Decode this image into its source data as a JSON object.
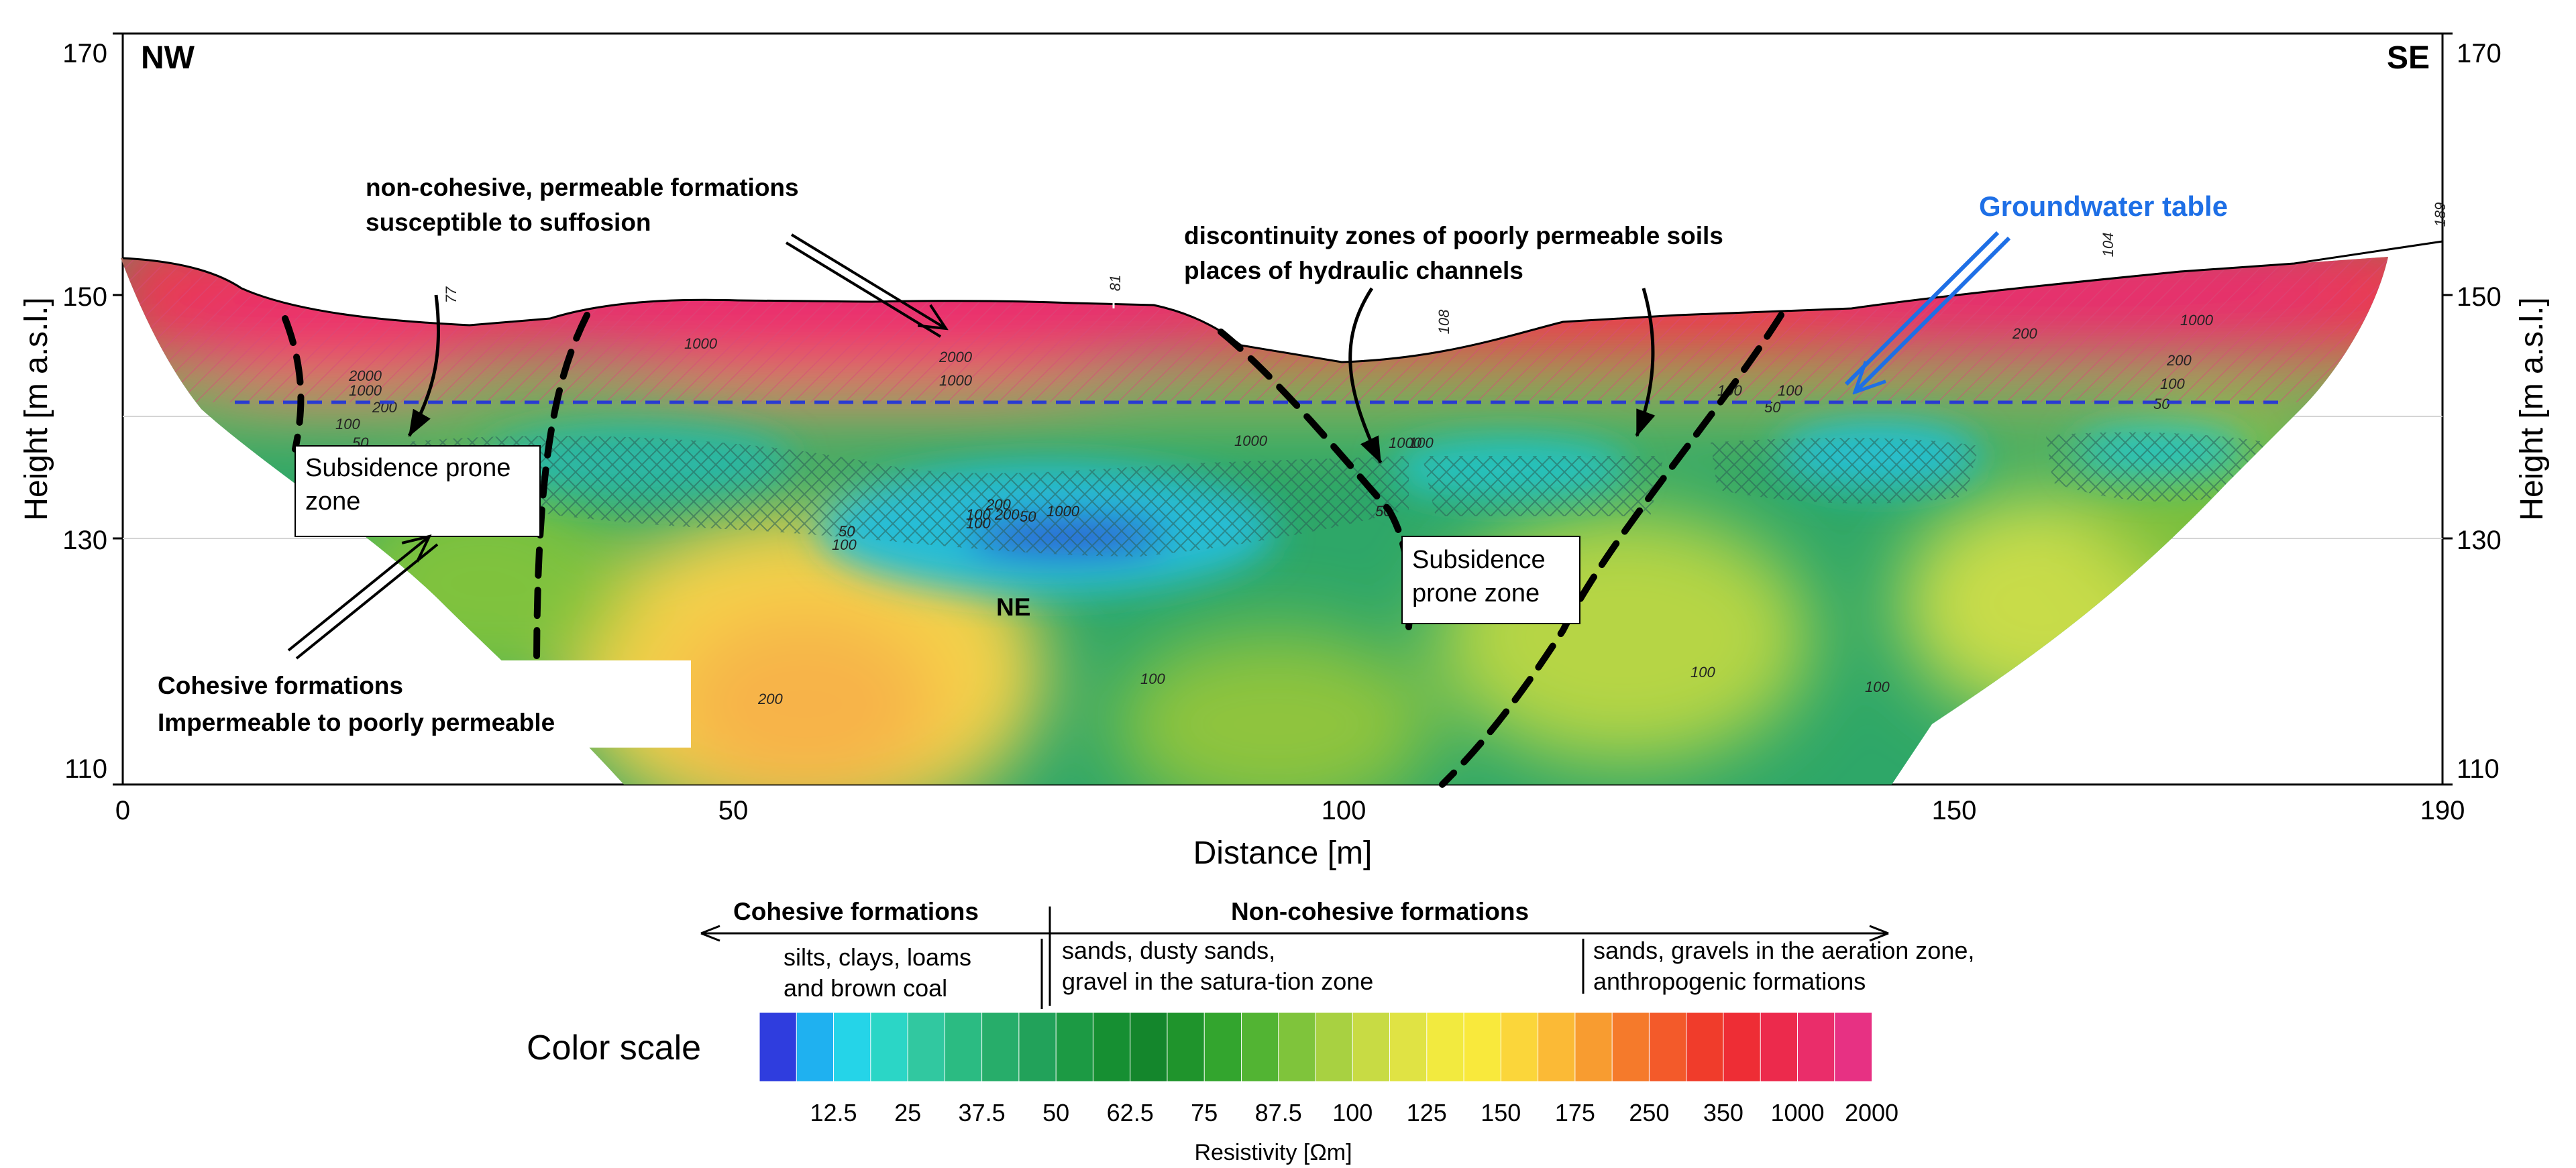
{
  "section": {
    "corner_left": "NW",
    "corner_right": "SE",
    "x_label": "Distance [m]",
    "y_label_left": "Height [m a.s.l.]",
    "y_label_right": "Height [m a.s.l.]",
    "x_ticks": [
      "0",
      "50",
      "100",
      "150",
      "190"
    ],
    "y_ticks": [
      "170",
      "150",
      "130",
      "110"
    ],
    "inner_label": "NE"
  },
  "annotations": {
    "non_cohesive_1": "non-cohesive, permeable formations",
    "non_cohesive_2": "susceptible to suffosion",
    "discontinuity_1": "discontinuity zones of poorly permeable soils",
    "discontinuity_2": "places of hydraulic channels",
    "groundwater": "Groundwater table",
    "subsidence_left_1": "Subsidence prone",
    "subsidence_left_2": "zone",
    "subsidence_mid_1": "Subsidence",
    "subsidence_mid_2": "prone zone",
    "cohesive_1": "Cohesive formations",
    "cohesive_2": "Impermeable to poorly permeable"
  },
  "borehole_labels": [
    "77",
    "81",
    "108",
    "104",
    "189"
  ],
  "contour_labels": [
    "2000",
    "1000",
    "200",
    "100",
    "50",
    "1000",
    "1000",
    "2000",
    "1000",
    "200",
    "100",
    "50",
    "100 200",
    "1000",
    "1000",
    "100",
    "50",
    "100",
    "100",
    "200",
    "50",
    "100",
    "100",
    "50",
    "200",
    "1000",
    "200",
    "100",
    "50",
    "100",
    "100"
  ],
  "legend": {
    "cohesive_header": "Cohesive formations",
    "noncohesive_header": "Non-cohesive formations",
    "group1_line1": "silts, clays, loams",
    "group1_line2": "and brown coal",
    "group2_line1": "sands, dusty sands,",
    "group2_line2": "gravel in the satura-tion zone",
    "group3_line1": "sands, gravels in the aeration zone,",
    "group3_line2": "anthropogenic formations",
    "color_scale_label": "Color scale",
    "unit": "Resistivity [Ωm]",
    "ticks": [
      "12.5",
      "25",
      "37.5",
      "50",
      "62.5",
      "75",
      "87.5",
      "100",
      "125",
      "150",
      "175",
      "250",
      "350",
      "1000",
      "2000"
    ],
    "swatch_colors": [
      "#2f3dde",
      "#1fb1f0",
      "#25d4e8",
      "#2bd6c6",
      "#31c8a0",
      "#2bbb82",
      "#27ad6a",
      "#22a25a",
      "#1c9a44",
      "#168f32",
      "#14862c",
      "#1f942c",
      "#33a52e",
      "#52b433",
      "#7fc43b",
      "#a8d141",
      "#c8db44",
      "#e0e344",
      "#f2ea3f",
      "#f9e93c",
      "#fbd63a",
      "#fbba36",
      "#f89c30",
      "#f57a2b",
      "#f35a2a",
      "#f03c2b",
      "#ee2d35",
      "#ec2a4c",
      "#ea2d6a",
      "#e73183"
    ]
  }
}
